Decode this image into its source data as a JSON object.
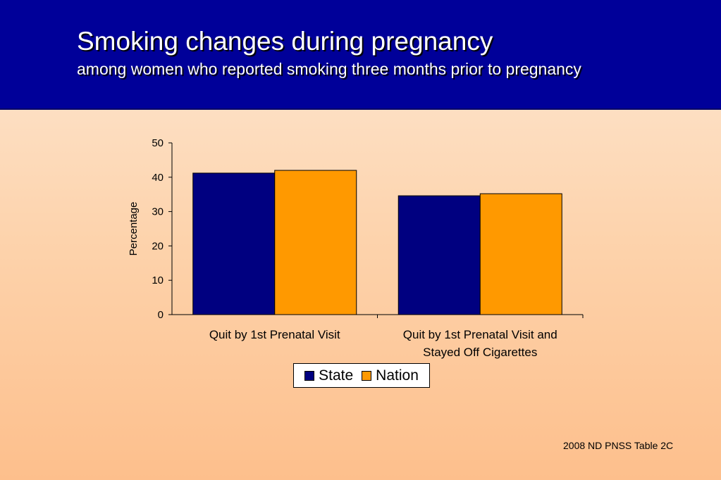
{
  "header": {
    "title": "Smoking changes during pregnancy",
    "subtitle": "among women who reported smoking three months prior to pregnancy"
  },
  "chart_data": {
    "type": "bar",
    "categories": [
      [
        "Quit by 1st Prenatal Visit"
      ],
      [
        "Quit by 1st Prenatal Visit and",
        "Stayed Off Cigarettes"
      ]
    ],
    "series": [
      {
        "name": "State",
        "values": [
          41.2,
          34.6
        ],
        "color": "#000080"
      },
      {
        "name": "Nation",
        "values": [
          42.0,
          35.2
        ],
        "color": "#ff9900"
      }
    ],
    "ylabel": "Percentage",
    "ylim": [
      0,
      50
    ],
    "yticks": [
      "0",
      "10",
      "20",
      "30",
      "40",
      "50"
    ],
    "grid": false,
    "legend_position": "bottom"
  },
  "legend": {
    "items": [
      {
        "label": "State",
        "color": "#000080"
      },
      {
        "label": "Nation",
        "color": "#ff9900"
      }
    ]
  },
  "footer": {
    "source": "2008 ND PNSS Table 2C"
  }
}
